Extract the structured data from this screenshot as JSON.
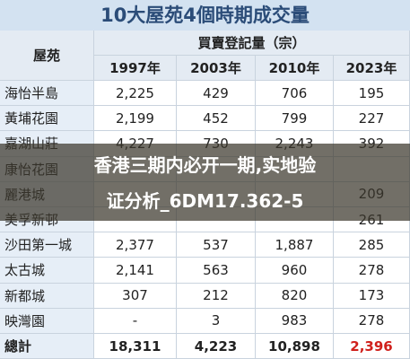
{
  "title": "10大屋苑4個時期成交量",
  "table": {
    "corner": "屋苑",
    "group_header": "買賣登記量（宗）",
    "columns": [
      "1997年",
      "2003年",
      "2010年",
      "2023年"
    ],
    "rows": [
      [
        "海怡半島",
        "2,225",
        "429",
        "706",
        "195"
      ],
      [
        "黃埔花園",
        "2,199",
        "452",
        "799",
        "227"
      ],
      [
        "嘉湖山莊",
        "4,227",
        "730",
        "2,243",
        "392"
      ],
      [
        "康怡花園",
        null,
        null,
        null,
        null
      ],
      [
        "麗港城",
        null,
        null,
        null,
        "209"
      ],
      [
        "美孚新邨",
        null,
        null,
        null,
        "261"
      ],
      [
        "沙田第一城",
        "2,377",
        "537",
        "1,887",
        "285"
      ],
      [
        "太古城",
        "2,141",
        "563",
        "960",
        "278"
      ],
      [
        "新都城",
        "307",
        "212",
        "820",
        "173"
      ],
      [
        "映灣園",
        "-",
        "3",
        "983",
        "278"
      ]
    ],
    "total": [
      "總計",
      "18,311",
      "4,223",
      "10,898",
      "2,396"
    ]
  },
  "overlay": {
    "line1": "香港三期内必开一期,实地验",
    "line2": "证分析_6DM17.362-5"
  }
}
